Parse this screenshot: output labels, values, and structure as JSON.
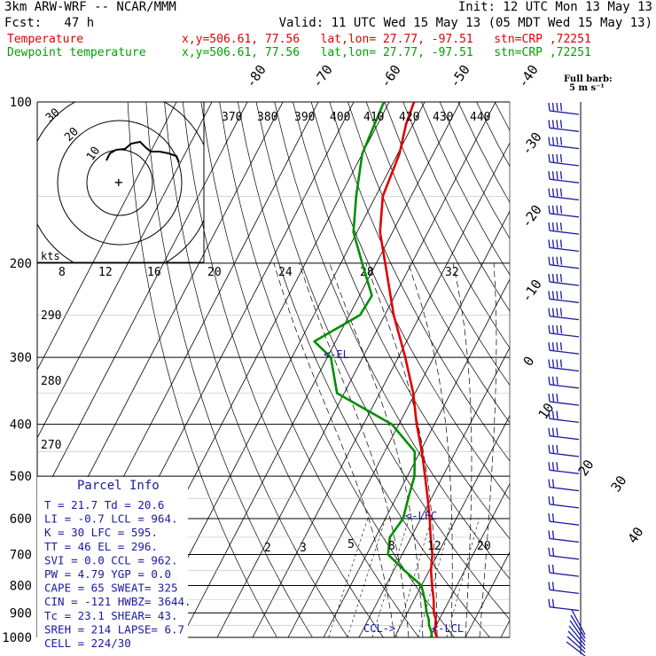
{
  "header": {
    "model": "3km ARW-WRF -- NCAR/MMM",
    "init": "Init: 12 UTC Mon 13 May 13",
    "fcst": "Fcst:   47 h",
    "valid": "Valid: 11 UTC Wed 15 May 13 (05 MDT Wed 15 May 13)",
    "temp_label": "Temperature",
    "temp_info": "x,y=506.61, 77.56   lat,lon= 27.77, -97.51   stn=CRP ,72251",
    "dew_label": "Dewpoint temperature",
    "dew_info": "x,y=506.61, 77.56   lat,lon= 27.77, -97.51   stn=CRP ,72251"
  },
  "colors": {
    "temperature": "#e00000",
    "dewpoint": "#008f00",
    "wind": "#1a1aa0",
    "hodograph": "#000000"
  },
  "barb_legend": {
    "line1": "Full barb:",
    "line2": "5 m s⁻¹"
  },
  "parcel": {
    "title": "Parcel Info",
    "rows": [
      "T  =   21.7  Td =  20.6",
      "LI =   -0.7  LCL =  964.",
      "K  =     30  LFC = 595.",
      "TT =     46  EL  =  296.",
      "SVI =   0.0  CCL =  962.",
      "PW =   4.79  YGP =   0.0",
      "CAPE =   65  SWEAT=  325",
      "CIN =  -121  HWBZ= 3644.",
      "Tc =   23.1  SHEAR=  43.",
      "SREH =  214  LAPSE=  6.7",
      "CELL = 224/30"
    ]
  },
  "annotations": {
    "el": "<-EL",
    "lfc": "<-LFC",
    "ccl": "CCL->",
    "lcl": "<-LCL",
    "kts": "kts"
  },
  "chart_data": {
    "type": "line",
    "title": "",
    "pressure_levels": [
      100,
      200,
      300,
      400,
      500,
      600,
      700,
      800,
      900,
      1000
    ],
    "isotherm_labels": [
      "-80",
      "-70",
      "-60",
      "-50",
      "-40",
      "-30",
      "-20",
      "-10",
      "0",
      "10",
      "20",
      "30",
      "40"
    ],
    "theta_labels": [
      "370",
      "380",
      "390",
      "400",
      "410",
      "420",
      "430",
      "440",
      "290",
      "280",
      "270"
    ],
    "mixing_ratio_labels": [
      "2",
      "3",
      "5",
      "8",
      "12",
      "20"
    ],
    "hodo_speed_labels": [
      "8",
      "12",
      "16",
      "20",
      "24",
      "28",
      "32"
    ],
    "hodo_ring_labels": [
      "10",
      "20",
      "30"
    ],
    "series": [
      {
        "name": "Temperature",
        "points": [
          [
            1000,
            22.0
          ],
          [
            975,
            20.5
          ],
          [
            950,
            19.8
          ],
          [
            925,
            19.0
          ],
          [
            900,
            17.5
          ],
          [
            850,
            15.5
          ],
          [
            800,
            13.0
          ],
          [
            750,
            10.5
          ],
          [
            700,
            8.5
          ],
          [
            650,
            5.5
          ],
          [
            600,
            2.5
          ],
          [
            550,
            -1.0
          ],
          [
            500,
            -5.0
          ],
          [
            450,
            -9.5
          ],
          [
            400,
            -15.0
          ],
          [
            350,
            -20.5
          ],
          [
            300,
            -28.0
          ],
          [
            250,
            -37.5
          ],
          [
            200,
            -47.5
          ],
          [
            175,
            -53.5
          ],
          [
            150,
            -58.0
          ],
          [
            125,
            -59.5
          ],
          [
            110,
            -62.0
          ],
          [
            100,
            -63.0
          ]
        ]
      },
      {
        "name": "Dewpoint temperature",
        "points": [
          [
            1000,
            20.6
          ],
          [
            975,
            19.5
          ],
          [
            950,
            18.0
          ],
          [
            925,
            17.0
          ],
          [
            900,
            15.5
          ],
          [
            850,
            13.0
          ],
          [
            800,
            10.0
          ],
          [
            750,
            3.0
          ],
          [
            700,
            -4.0
          ],
          [
            650,
            -6.0
          ],
          [
            600,
            -5.0
          ],
          [
            550,
            -6.5
          ],
          [
            500,
            -8.0
          ],
          [
            450,
            -11.5
          ],
          [
            400,
            -22.0
          ],
          [
            350,
            -42.0
          ],
          [
            300,
            -49.0
          ],
          [
            280,
            -56.0
          ],
          [
            250,
            -47.0
          ],
          [
            230,
            -46.5
          ],
          [
            200,
            -54.0
          ],
          [
            175,
            -61.0
          ],
          [
            150,
            -65.5
          ],
          [
            125,
            -70.0
          ],
          [
            100,
            -71.5
          ]
        ]
      }
    ]
  }
}
